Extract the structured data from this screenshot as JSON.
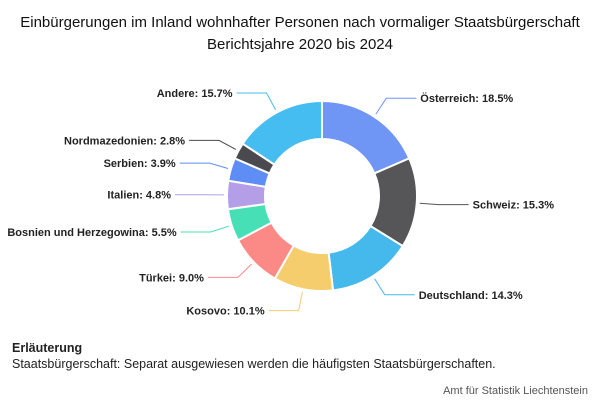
{
  "chart_data": {
    "type": "pie",
    "donut": true,
    "title": "Einbürgerungen im Inland wohnhafter Personen nach vormaliger Staatsbürgerschaft",
    "subtitle": "Berichtsjahre 2020 bis 2024",
    "slices": [
      {
        "name": "Österreich",
        "value": 18.5,
        "label": "Österreich: 18.5%",
        "color": "#6f95f5"
      },
      {
        "name": "Schweiz",
        "value": 15.3,
        "label": "Schweiz: 15.3%",
        "color": "#565659"
      },
      {
        "name": "Deutschland",
        "value": 14.3,
        "label": "Deutschland: 14.3%",
        "color": "#45b9ec"
      },
      {
        "name": "Kosovo",
        "value": 10.1,
        "label": "Kosovo: 10.1%",
        "color": "#f5cd6c"
      },
      {
        "name": "Türkei",
        "value": 9.0,
        "label": "Türkei: 9.0%",
        "color": "#fb8a87"
      },
      {
        "name": "Bosnien und Herzegowina",
        "value": 5.5,
        "label": "Bosnien und Herzegowina: 5.5%",
        "color": "#47dfb5"
      },
      {
        "name": "Italien",
        "value": 4.8,
        "label": "Italien: 4.8%",
        "color": "#b49ee8"
      },
      {
        "name": "Serbien",
        "value": 3.9,
        "label": "Serbien: 3.9%",
        "color": "#5d8df5"
      },
      {
        "name": "Nordmazedonien",
        "value": 2.8,
        "label": "Nordmazedonien: 2.8%",
        "color": "#4a4a4e"
      },
      {
        "name": "Andere",
        "value": 15.7,
        "label": "Andere: 15.7%",
        "color": "#45bdf0"
      }
    ]
  },
  "note": {
    "heading": "Erläuterung",
    "text": "Staatsbürgerschaft: Separat ausgewiesen werden die häufigsten Staatsbürgerschaften."
  },
  "source": "Amt für Statistik Liechtenstein"
}
